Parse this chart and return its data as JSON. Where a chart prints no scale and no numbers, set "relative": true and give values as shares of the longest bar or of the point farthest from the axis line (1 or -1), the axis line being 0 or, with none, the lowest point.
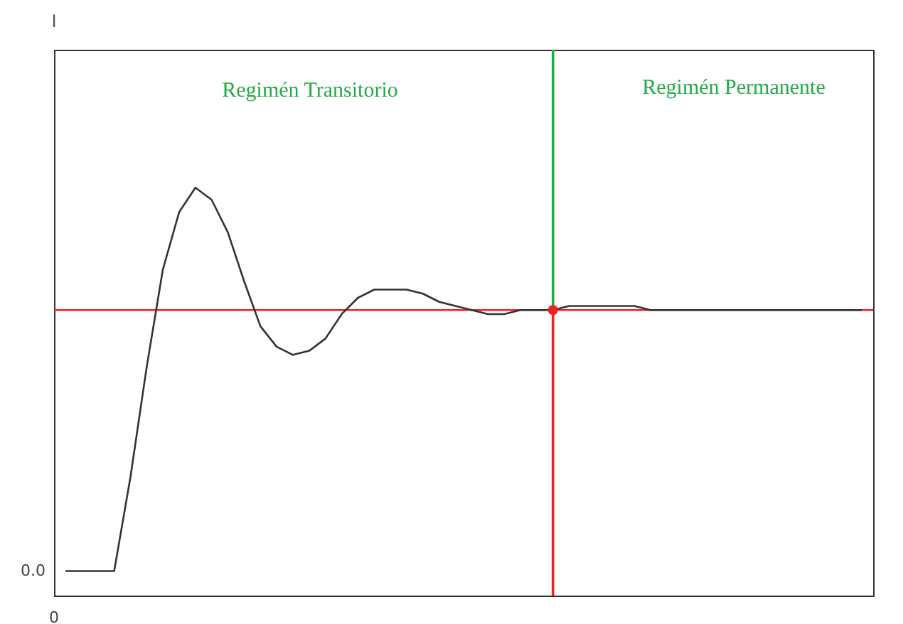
{
  "chart_data": {
    "type": "line",
    "relative": true,
    "annotations": [
      "Regimén Transitorio",
      "Regimén Permanente",
      "0.0",
      "0",
      "I"
    ],
    "categories": [
      null,
      null,
      null,
      null,
      null,
      null,
      null,
      null,
      null,
      null,
      null,
      null,
      null,
      null,
      null,
      null,
      null,
      null,
      null,
      null,
      null,
      null,
      null,
      null,
      null,
      null,
      null,
      null,
      null,
      null,
      null,
      null,
      null,
      null,
      null,
      null,
      null,
      null,
      null,
      null,
      null,
      null,
      null,
      null,
      null,
      null,
      null,
      null,
      null,
      null
    ],
    "grid": false,
    "series": [
      {
        "color": "#333333",
        "values": [
          0.06,
          0.06,
          0.06,
          0.06,
          0.29,
          0.56,
          0.8,
          0.94,
          1,
          0.97,
          0.89,
          0.77,
          0.66,
          0.61,
          0.59,
          0.6,
          0.63,
          0.69,
          0.73,
          0.75,
          0.75,
          0.75,
          0.74,
          0.72,
          0.71,
          0.7,
          0.69,
          0.69,
          0.7,
          0.7,
          0.7,
          0.71,
          0.71,
          0.71,
          0.71,
          0.71,
          0.7,
          0.7,
          0.7,
          0.7,
          0.7,
          0.7,
          0.7,
          0.7,
          0.7,
          0.7,
          0.7,
          0.7,
          0.7,
          0.7
        ]
      }
    ],
    "ref_lines": [
      {
        "axis": "y",
        "value": 0.7,
        "color": "#ee2222"
      }
    ]
  }
}
